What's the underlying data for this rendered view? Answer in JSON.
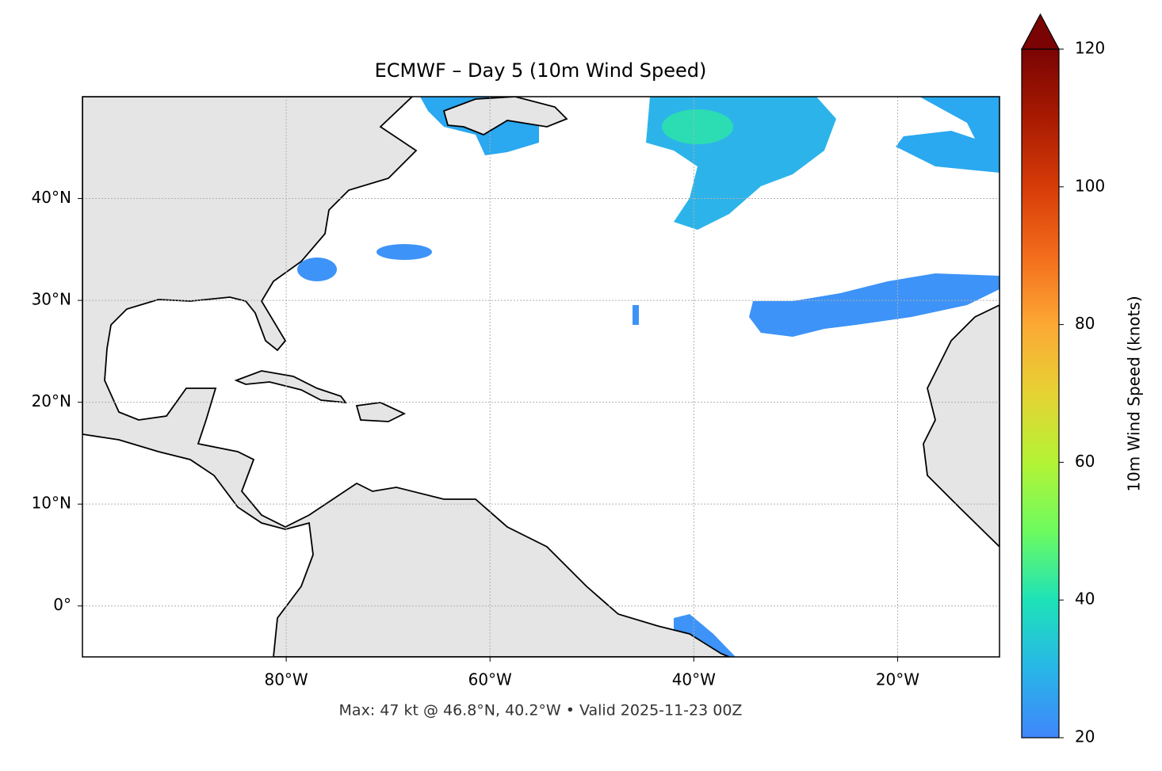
{
  "chart_data": {
    "type": "map",
    "title": "ECMWF – Day 5 (10m Wind Speed)",
    "annotation": "Max: 47 kt @ 46.8°N, 40.2°W • Valid 2025-11-23 00Z",
    "xlim": [
      -100,
      -10
    ],
    "ylim": [
      -5,
      50
    ],
    "xticks": [
      {
        "value": -80,
        "label": "80°W"
      },
      {
        "value": -60,
        "label": "60°W"
      },
      {
        "value": -40,
        "label": "40°W"
      },
      {
        "value": -20,
        "label": "20°W"
      }
    ],
    "yticks": [
      {
        "value": 0,
        "label": "0°"
      },
      {
        "value": 10,
        "label": "10°N"
      },
      {
        "value": 20,
        "label": "20°N"
      },
      {
        "value": 30,
        "label": "30°N"
      },
      {
        "value": 40,
        "label": "40°N"
      }
    ],
    "grid": true,
    "colorbar": {
      "label": "10m Wind Speed (knots)",
      "lim": [
        20,
        120
      ],
      "ticks": [
        20,
        40,
        60,
        80,
        100,
        120
      ],
      "extend": "max"
    }
  }
}
